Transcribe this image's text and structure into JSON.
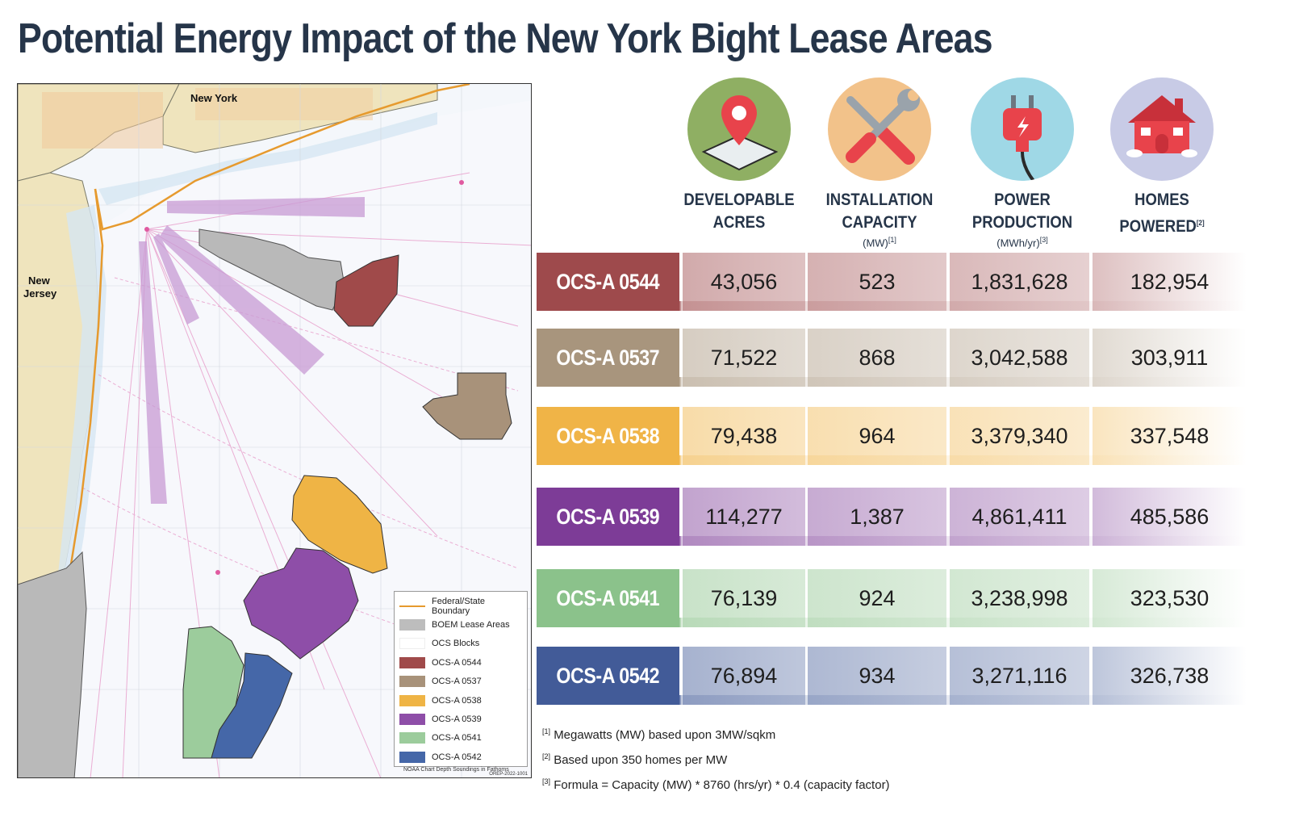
{
  "title": "Potential Energy Impact of the New York Bight Lease Areas",
  "map": {
    "labels": {
      "new_york": "New York",
      "new_jersey_1": "New",
      "new_jersey_2": "Jersey"
    },
    "legend": [
      {
        "label": "Federal/State Boundary",
        "kind": "line",
        "color": "#e69a2e"
      },
      {
        "label": "BOEM Lease Areas",
        "kind": "swatch",
        "color": "#bdbdbd"
      },
      {
        "label": "OCS Blocks",
        "kind": "swatch",
        "color": "#ffffff"
      },
      {
        "label": "OCS-A 0544",
        "kind": "swatch",
        "color": "#a04a4a"
      },
      {
        "label": "OCS-A 0537",
        "kind": "swatch",
        "color": "#a8927a"
      },
      {
        "label": "OCS-A 0538",
        "kind": "swatch",
        "color": "#efb445"
      },
      {
        "label": "OCS-A 0539",
        "kind": "swatch",
        "color": "#8e4ea8"
      },
      {
        "label": "OCS-A 0541",
        "kind": "swatch",
        "color": "#9ccc9c"
      },
      {
        "label": "OCS-A 0542",
        "kind": "swatch",
        "color": "#4567a8"
      }
    ],
    "footer": "NOAA Chart Depth Soundings in Fathoms",
    "code": "OREP-2022-1001"
  },
  "columns": [
    {
      "line1": "DEVELOPABLE",
      "line2": "ACRES",
      "sub": "",
      "sup": "",
      "icon": "map-pin-icon"
    },
    {
      "line1": "INSTALLATION",
      "line2": "CAPACITY",
      "sub": "(MW)",
      "sup": "[1]",
      "icon": "tools-icon"
    },
    {
      "line1": "POWER",
      "line2": "PRODUCTION",
      "sub": "(MWh/yr)",
      "sup": "[3]",
      "icon": "power-plug-icon"
    },
    {
      "line1": "HOMES",
      "line2": "POWERED",
      "sub": "",
      "sup": "[2]",
      "icon": "house-icon"
    }
  ],
  "rows": [
    {
      "name": "OCS-A 0544",
      "color": "#9e4a4c",
      "values": [
        "43,056",
        "523",
        "1,831,628",
        "182,954"
      ]
    },
    {
      "name": "OCS-A 0537",
      "color": "#a8957d",
      "values": [
        "71,522",
        "868",
        "3,042,588",
        "303,911"
      ]
    },
    {
      "name": "OCS-A 0538",
      "color": "#f0b447",
      "values": [
        "79,438",
        "964",
        "3,379,340",
        "337,548"
      ]
    },
    {
      "name": "OCS-A 0539",
      "color": "#7d3c97",
      "values": [
        "114,277",
        "1,387",
        "4,861,411",
        "485,586"
      ]
    },
    {
      "name": "OCS-A 0541",
      "color": "#8bc28b",
      "values": [
        "76,139",
        "924",
        "3,238,998",
        "323,530"
      ]
    },
    {
      "name": "OCS-A 0542",
      "color": "#425b98",
      "values": [
        "76,894",
        "934",
        "3,271,116",
        "326,738"
      ]
    }
  ],
  "footnotes": [
    {
      "mark": "[1]",
      "text": "Megawatts (MW) based upon 3MW/sqkm"
    },
    {
      "mark": "[2]",
      "text": "Based upon 350 homes per MW"
    },
    {
      "mark": "[3]",
      "text": "Formula = Capacity (MW) * 8760 (hrs/yr) * 0.4 (capacity factor)"
    }
  ]
}
